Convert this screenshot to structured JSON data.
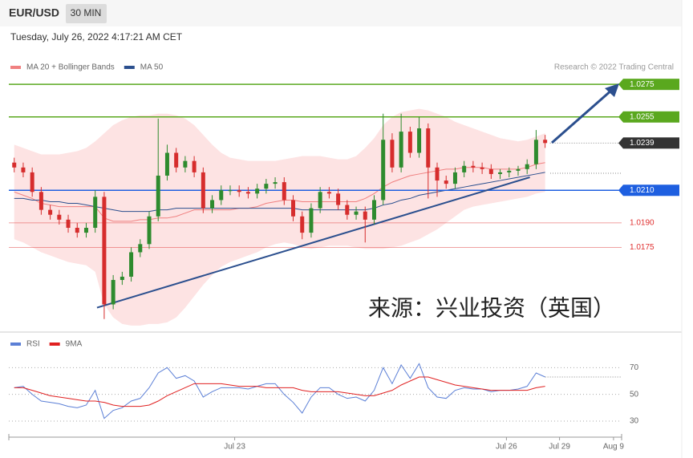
{
  "chart_data": {
    "type": "candlestick",
    "title": "EUR/USD",
    "timeframe": "30 MIN",
    "subtitle": "Tuesday, July 26, 2022 4:17:21 AM CET",
    "credit": "Research © 2022 Trading Central",
    "watermark": "来源：兴业投资（英国）",
    "up_color": "#2e8b2e",
    "down_color": "#d62d2d",
    "open": [
      1.0227,
      1.0224,
      1.0221,
      1.0209,
      1.0198,
      1.0195,
      1.0192,
      1.0187,
      1.0184,
      1.0187,
      1.0206,
      1.014,
      1.0155,
      1.0157,
      1.0172,
      1.0177,
      1.0194,
      1.0219,
      1.0233,
      1.0224,
      1.0228,
      1.0221,
      1.0199,
      1.0204,
      1.021,
      1.021,
      1.0209,
      1.0208,
      1.0211,
      1.0214,
      1.0215,
      1.0204,
      1.0194,
      1.0184,
      1.0199,
      1.0209,
      1.0208,
      1.0201,
      1.0195,
      1.0197,
      1.0192,
      1.0204,
      1.0241,
      1.0224,
      1.0246,
      1.0233,
      1.0248,
      1.0224,
      1.0216,
      1.0214,
      1.0221,
      1.0225,
      1.0224,
      1.0223,
      1.022,
      1.0221,
      1.0222,
      1.0223,
      1.0226,
      1.0241
    ],
    "high": [
      1.023,
      1.0227,
      1.0224,
      1.0212,
      1.0201,
      1.0198,
      1.0195,
      1.019,
      1.019,
      1.021,
      1.0209,
      1.0158,
      1.016,
      1.0175,
      1.018,
      1.0197,
      1.0254,
      1.0238,
      1.0236,
      1.0231,
      1.0231,
      1.0224,
      1.0207,
      1.0213,
      1.0213,
      1.0213,
      1.0212,
      1.0214,
      1.0217,
      1.0218,
      1.0218,
      1.0207,
      1.0197,
      1.0202,
      1.0212,
      1.0212,
      1.0211,
      1.0204,
      1.02,
      1.02,
      1.0207,
      1.0257,
      1.0245,
      1.0257,
      1.0249,
      1.0255,
      1.0251,
      1.0227,
      1.0219,
      1.0224,
      1.0228,
      1.0228,
      1.0227,
      1.0226,
      1.0223,
      1.0224,
      1.0225,
      1.0229,
      1.0247,
      1.0244
    ],
    "low": [
      1.0221,
      1.0218,
      1.0206,
      1.0195,
      1.0192,
      1.0189,
      1.0184,
      1.0181,
      1.0181,
      1.0184,
      1.0131,
      1.0137,
      1.0152,
      1.0154,
      1.0169,
      1.0174,
      1.0191,
      1.0216,
      1.0221,
      1.0221,
      1.0218,
      1.0196,
      1.0196,
      1.0201,
      1.0207,
      1.0206,
      1.0205,
      1.0205,
      1.0208,
      1.0211,
      1.0201,
      1.0191,
      1.018,
      1.0181,
      1.0196,
      1.0205,
      1.0198,
      1.0192,
      1.0192,
      1.0178,
      1.0189,
      1.0201,
      1.0221,
      1.0221,
      1.023,
      1.023,
      1.0205,
      1.0206,
      1.0211,
      1.0211,
      1.0218,
      1.0221,
      1.022,
      1.0217,
      1.0217,
      1.0218,
      1.0219,
      1.022,
      1.0223,
      1.0236
    ],
    "close": [
      1.0224,
      1.0221,
      1.0209,
      1.0198,
      1.0195,
      1.0192,
      1.0187,
      1.0184,
      1.0187,
      1.0206,
      1.014,
      1.0155,
      1.0157,
      1.0172,
      1.0177,
      1.0194,
      1.0219,
      1.0233,
      1.0224,
      1.0228,
      1.0221,
      1.0199,
      1.0204,
      1.021,
      1.021,
      1.0209,
      1.0208,
      1.0211,
      1.0214,
      1.0215,
      1.0204,
      1.0194,
      1.0184,
      1.0199,
      1.0209,
      1.0208,
      1.0201,
      1.0195,
      1.0197,
      1.0192,
      1.0204,
      1.0241,
      1.0224,
      1.0246,
      1.0233,
      1.0248,
      1.0224,
      1.0216,
      1.0214,
      1.0221,
      1.0225,
      1.0224,
      1.0223,
      1.022,
      1.0221,
      1.0222,
      1.0223,
      1.0226,
      1.0241,
      1.0239
    ],
    "series": [
      {
        "name": "MA 20 + Bollinger Bands",
        "color": "#f08080",
        "band_color": "#fde3e3",
        "values": [
          1.0209,
          1.0207,
          1.0205,
          1.0202,
          1.0201,
          1.02,
          1.02,
          1.02,
          1.02,
          1.02,
          1.0193,
          1.0191,
          1.0191,
          1.0191,
          1.0192,
          1.0192,
          1.0193,
          1.0193,
          1.0194,
          1.0196,
          1.0198,
          1.0198,
          1.0198,
          1.0198,
          1.0198,
          1.0199,
          1.0199,
          1.02,
          1.0202,
          1.0203,
          1.0204,
          1.0204,
          1.0203,
          1.0203,
          1.0203,
          1.0203,
          1.0203,
          1.0203,
          1.0203,
          1.0205,
          1.0208,
          1.0212,
          1.0215,
          1.0217,
          1.0219,
          1.022,
          1.0221,
          1.0222,
          1.0223,
          1.0223,
          1.0224,
          1.0224,
          1.0224,
          1.0223,
          1.0223,
          1.0223,
          1.0223,
          1.0224,
          1.0226,
          1.0227
        ],
        "upper": [
          1.0238,
          1.0236,
          1.0234,
          1.0232,
          1.0232,
          1.0232,
          1.0233,
          1.0234,
          1.0236,
          1.024,
          1.0245,
          1.025,
          1.0253,
          1.0255,
          1.0256,
          1.0256,
          1.0257,
          1.0257,
          1.0256,
          1.0254,
          1.025,
          1.0244,
          1.0238,
          1.0233,
          1.023,
          1.0229,
          1.0228,
          1.0228,
          1.0228,
          1.0228,
          1.0229,
          1.023,
          1.0231,
          1.0231,
          1.0231,
          1.023,
          1.0229,
          1.0229,
          1.0231,
          1.0236,
          1.0242,
          1.025,
          1.0255,
          1.0258,
          1.0259,
          1.026,
          1.0259,
          1.0257,
          1.0255,
          1.0252,
          1.025,
          1.0248,
          1.0246,
          1.0244,
          1.0242,
          1.0241,
          1.024,
          1.0241,
          1.0243,
          1.0245
        ],
        "lower": [
          1.018,
          1.0178,
          1.0175,
          1.0172,
          1.017,
          1.0168,
          1.0166,
          1.0165,
          1.0164,
          1.016,
          1.014,
          1.0132,
          1.0128,
          1.0127,
          1.0127,
          1.0128,
          1.0128,
          1.0129,
          1.0132,
          1.0138,
          1.0145,
          1.0152,
          1.0158,
          1.0163,
          1.0166,
          1.0168,
          1.017,
          1.0172,
          1.0175,
          1.0177,
          1.0178,
          1.0177,
          1.0175,
          1.0174,
          1.0175,
          1.0176,
          1.0176,
          1.0176,
          1.0175,
          1.0174,
          1.0174,
          1.0174,
          1.0175,
          1.0176,
          1.0178,
          1.018,
          1.0183,
          1.0186,
          1.019,
          1.0194,
          1.0198,
          1.02,
          1.0201,
          1.0202,
          1.0203,
          1.0204,
          1.0205,
          1.0206,
          1.0208,
          1.0209
        ]
      },
      {
        "name": "MA 50",
        "color": "#2b4f8e",
        "values": [
          1.0205,
          1.0205,
          1.0204,
          1.0204,
          1.0203,
          1.0203,
          1.0202,
          1.0202,
          1.0201,
          1.02,
          1.0199,
          1.0198,
          1.0197,
          1.0197,
          1.0197,
          1.0197,
          1.0198,
          1.0198,
          1.0199,
          1.0199,
          1.0199,
          1.0199,
          1.0199,
          1.0199,
          1.0199,
          1.0199,
          1.0199,
          1.0199,
          1.0199,
          1.0199,
          1.0199,
          1.0199,
          1.0198,
          1.0198,
          1.0198,
          1.0198,
          1.0198,
          1.0198,
          1.0198,
          1.0198,
          1.0199,
          1.0201,
          1.0202,
          1.0204,
          1.0205,
          1.0207,
          1.0208,
          1.0209,
          1.021,
          1.0211,
          1.0212,
          1.0213,
          1.0214,
          1.0215,
          1.0216,
          1.0217,
          1.0218,
          1.0219,
          1.022,
          1.0221
        ]
      }
    ],
    "ylim": [
      1.0125,
      1.028
    ],
    "xlim": [
      -0.6,
      67.5
    ],
    "xticks": [
      {
        "value": 24.5,
        "label": "Jul 23"
      },
      {
        "value": 54.7,
        "label": "Jul 26"
      },
      {
        "value": 60.6,
        "label": "Jul 29"
      },
      {
        "value": 66.6,
        "label": "Aug 9"
      }
    ],
    "levels": [
      {
        "value": 1.0275,
        "color": "#5aa81e",
        "box": true,
        "line": true
      },
      {
        "value": 1.0255,
        "color": "#5aa81e",
        "box": true,
        "line": true
      },
      {
        "value": 1.0239,
        "color": "#333333",
        "box": true,
        "line": false
      },
      {
        "value": 1.021,
        "label": "1.0210",
        "color": "#1e5fe0",
        "box": true,
        "line": true
      },
      {
        "value": 1.019,
        "label": "1.0190",
        "color": "#e03030",
        "box": false,
        "line": true
      },
      {
        "value": 1.0175,
        "color": "#e03030",
        "box": false,
        "line": true
      }
    ],
    "trendline": {
      "x": [
        9.2,
        57.3
      ],
      "y": [
        1.0138,
        1.0218
      ],
      "color": "#2b4f8e"
    },
    "rsi": {
      "ylim": [
        18,
        78
      ],
      "yticks": [
        30,
        50,
        70
      ],
      "grid": true,
      "series": [
        {
          "name": "RSI",
          "color": "#5b7fd6",
          "values": [
            55,
            56,
            50,
            45,
            44,
            43,
            41,
            40,
            42,
            53,
            32,
            38,
            40,
            45,
            47,
            55,
            66,
            70,
            62,
            64,
            60,
            48,
            52,
            55,
            55,
            55,
            54,
            56,
            58,
            58,
            50,
            44,
            36,
            48,
            55,
            55,
            50,
            47,
            48,
            45,
            53,
            70,
            58,
            72,
            62,
            73,
            55,
            48,
            47,
            53,
            55,
            54,
            54,
            52,
            53,
            53,
            54,
            56,
            66,
            63
          ]
        },
        {
          "name": "9MA",
          "color": "#e02020",
          "values": [
            55,
            55,
            53,
            51,
            49,
            48,
            47,
            46,
            45,
            45,
            44,
            42,
            41,
            41,
            41,
            42,
            45,
            49,
            52,
            55,
            58,
            58,
            58,
            58,
            57,
            56,
            56,
            56,
            55,
            55,
            55,
            55,
            53,
            52,
            52,
            52,
            52,
            51,
            50,
            49,
            49,
            51,
            53,
            57,
            60,
            63,
            63,
            61,
            59,
            57,
            56,
            55,
            54,
            53,
            53,
            53,
            53,
            53,
            55,
            56
          ]
        }
      ]
    }
  }
}
